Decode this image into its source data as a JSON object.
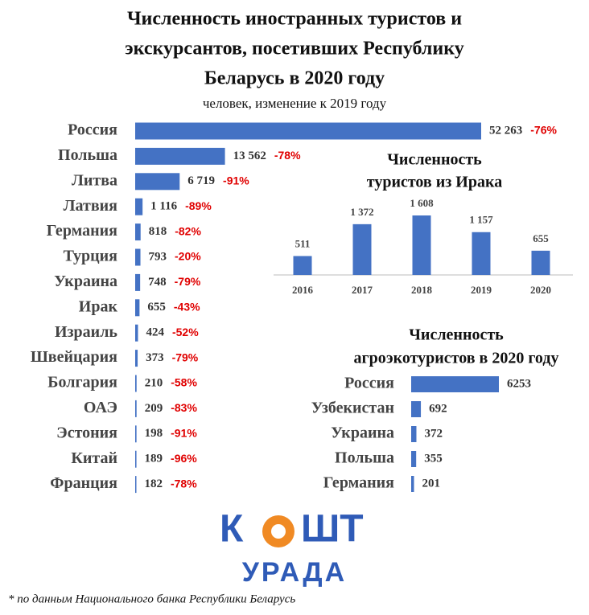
{
  "chart_data": [
    {
      "type": "barh",
      "title": [
        "Численность иностранных туристов и",
        "экскурсантов, посетивших Республику",
        "Беларусь в 2020 году"
      ],
      "subtitle": "человек, изменение к 2019 году",
      "categories": [
        "Россия",
        "Польша",
        "Литва",
        "Латвия",
        "Германия",
        "Турция",
        "Украина",
        "Ирак",
        "Израиль",
        "Швейцария",
        "Болгария",
        "ОАЭ",
        "Эстония",
        "Китай",
        "Франция"
      ],
      "values": [
        52263,
        13562,
        6719,
        1116,
        818,
        793,
        748,
        655,
        424,
        373,
        210,
        209,
        198,
        189,
        182
      ],
      "value_labels": [
        "52 263",
        "13 562",
        "6 719",
        "1 116",
        "818",
        "793",
        "748",
        "655",
        "424",
        "373",
        "210",
        "209",
        "198",
        "189",
        "182"
      ],
      "change_labels": [
        "-76%",
        "-78%",
        "-91%",
        "-89%",
        "-82%",
        "-20%",
        "-79%",
        "-43%",
        "-52%",
        "-79%",
        "-58%",
        "-83%",
        "-91%",
        "-96%",
        "-78%"
      ],
      "color": "#4472c4"
    },
    {
      "type": "bar",
      "title": [
        "Численность",
        "туристов из Ирака"
      ],
      "categories": [
        "2016",
        "2017",
        "2018",
        "2019",
        "2020"
      ],
      "values": [
        511,
        1372,
        1608,
        1157,
        655
      ],
      "value_labels": [
        "511",
        "1 372",
        "1 608",
        "1 157",
        "655"
      ],
      "color": "#4472c4"
    },
    {
      "type": "barh",
      "title": [
        "Численность",
        "агроэкотуристов в 2020 году"
      ],
      "categories": [
        "Россия",
        "Узбекистан",
        "Украина",
        "Польша",
        "Германия"
      ],
      "values": [
        6253,
        692,
        372,
        355,
        201
      ],
      "color": "#4472c4"
    }
  ],
  "logo": {
    "before": "К",
    "after": "ШТ",
    "bottom": "УРАДА"
  },
  "footnote": "* по данным Национального банка Республики Беларусь"
}
